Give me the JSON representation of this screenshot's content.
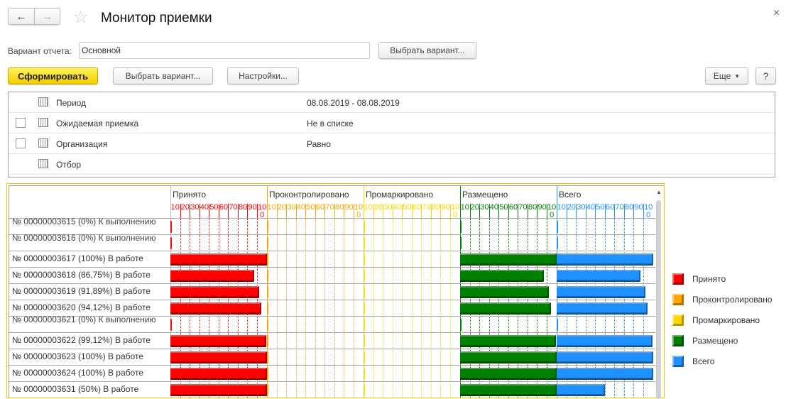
{
  "window": {
    "title": "Монитор приемки",
    "close_icon": "×"
  },
  "nav": {
    "back_icon": "arrow-left",
    "forward_icon": "arrow-right",
    "favorite_icon": "star"
  },
  "variant": {
    "label": "Вариант отчета:",
    "value": "Основной",
    "choose_button": "Выбрать вариант..."
  },
  "toolbar": {
    "generate": "Сформировать",
    "choose_variant": "Выбрать вариант...",
    "settings": "Настройки...",
    "more": "Еще",
    "help": "?"
  },
  "filters": [
    {
      "name": "Период",
      "value": "08.08.2019 - 08.08.2019",
      "checkbox": false
    },
    {
      "name": "Ожидаемая приемка",
      "value": "Не в списке",
      "checkbox": true,
      "checked": false
    },
    {
      "name": "Организация",
      "value": "Равно",
      "checkbox": true,
      "checked": false
    },
    {
      "name": "Отбор",
      "value": "",
      "checkbox": false
    }
  ],
  "chart_data": {
    "type": "bar",
    "orientation": "horizontal",
    "xlim": [
      0,
      100
    ],
    "ticks": [
      "10",
      "20",
      "30",
      "40",
      "50",
      "60",
      "70",
      "80",
      "90",
      "100"
    ],
    "series": [
      {
        "name": "Принято",
        "color": "#ff0000"
      },
      {
        "name": "Проконтролировано",
        "color": "#ffa500"
      },
      {
        "name": "Промаркировано",
        "color": "#ffd700"
      },
      {
        "name": "Размещено",
        "color": "#008000"
      },
      {
        "name": "Всего",
        "color": "#1e90ff"
      }
    ],
    "categories": [
      "№ 00000003615 (0%) К выполнению",
      "№ 00000003616 (0%) К выполнению",
      "№ 00000003617 (100%) В работе",
      "№ 00000003618 (86,75%) В работе",
      "№ 00000003619 (91,89%) В работе",
      "№ 00000003620 (94,12%) В работе",
      "№ 00000003621 (0%) К выполнению",
      "№ 00000003622 (99,12%) В работе",
      "№ 00000003623 (100%) В работе",
      "№ 00000003624 (100%) В работе",
      "№ 00000003631 (50%) В работе"
    ],
    "values": [
      [
        0,
        0,
        0,
        0,
        0
      ],
      [
        0,
        0,
        0,
        0,
        0
      ],
      [
        100,
        0,
        0,
        100,
        100
      ],
      [
        87,
        0,
        0,
        87,
        87
      ],
      [
        92,
        0,
        0,
        92,
        92
      ],
      [
        94,
        0,
        0,
        94,
        94
      ],
      [
        0,
        0,
        0,
        0,
        0
      ],
      [
        99,
        0,
        0,
        99,
        99
      ],
      [
        100,
        0,
        0,
        100,
        100
      ],
      [
        100,
        0,
        0,
        100,
        100
      ],
      [
        100,
        0,
        0,
        100,
        50
      ]
    ],
    "legend": "right"
  }
}
